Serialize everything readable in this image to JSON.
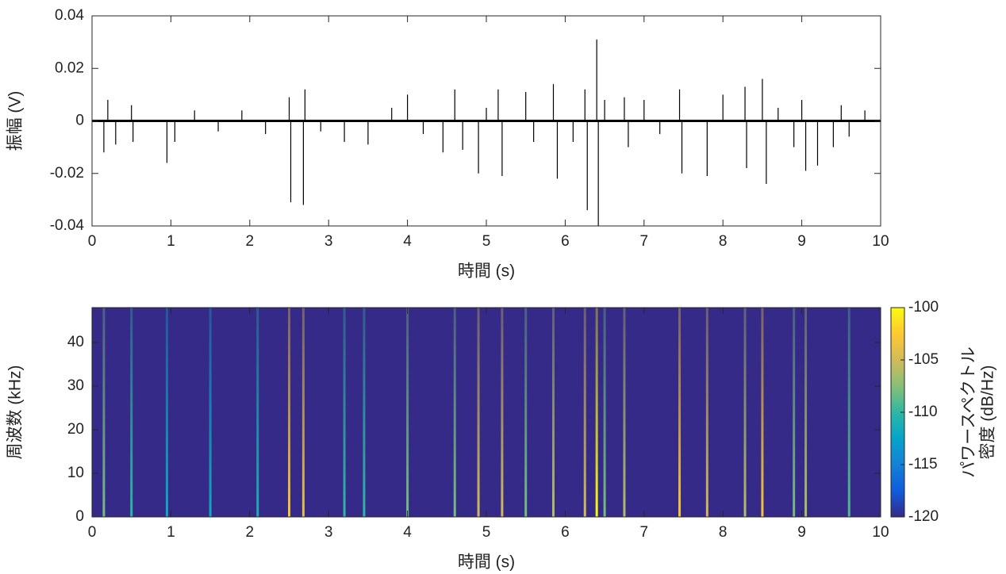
{
  "chart_data": [
    {
      "type": "stem",
      "xlabel": "時間 (s)",
      "ylabel": "振幅 (V)",
      "xlim": [
        0,
        10
      ],
      "xticks": [
        0,
        1,
        2,
        3,
        4,
        5,
        6,
        7,
        8,
        9,
        10
      ],
      "ylim": [
        -0.04,
        0.04
      ],
      "yticks": [
        -0.04,
        -0.02,
        0,
        0.02,
        0.04
      ],
      "color": "#000000",
      "x": [
        0.15,
        0.2,
        0.3,
        0.5,
        0.52,
        0.95,
        1.05,
        1.3,
        1.6,
        1.9,
        2.2,
        2.5,
        2.52,
        2.68,
        2.7,
        2.9,
        3.2,
        3.5,
        3.8,
        4.0,
        4.2,
        4.45,
        4.6,
        4.7,
        4.9,
        5.0,
        5.15,
        5.2,
        5.5,
        5.6,
        5.85,
        5.9,
        6.1,
        6.25,
        6.28,
        6.4,
        6.42,
        6.5,
        6.75,
        6.8,
        7.0,
        7.2,
        7.45,
        7.48,
        7.8,
        8.0,
        8.28,
        8.3,
        8.5,
        8.55,
        8.7,
        8.9,
        9.0,
        9.05,
        9.2,
        9.4,
        9.5,
        9.6,
        9.8
      ],
      "values": [
        -0.012,
        0.008,
        -0.009,
        0.006,
        -0.008,
        -0.016,
        -0.008,
        0.004,
        -0.004,
        0.004,
        -0.005,
        0.009,
        -0.031,
        -0.032,
        0.012,
        -0.004,
        -0.008,
        -0.009,
        0.005,
        0.01,
        -0.005,
        -0.012,
        0.012,
        -0.011,
        -0.02,
        0.005,
        0.012,
        -0.021,
        0.011,
        -0.008,
        0.014,
        -0.022,
        -0.008,
        0.012,
        -0.034,
        0.031,
        -0.04,
        0.008,
        0.009,
        -0.01,
        0.008,
        -0.005,
        0.012,
        -0.02,
        -0.021,
        0.01,
        0.013,
        -0.018,
        0.016,
        -0.024,
        0.005,
        -0.01,
        0.008,
        -0.019,
        -0.017,
        -0.01,
        0.006,
        -0.006,
        0.004
      ]
    },
    {
      "type": "spectrogram",
      "xlabel": "時間 (s)",
      "ylabel": "周波数 (kHz)",
      "xlim": [
        0,
        10
      ],
      "xticks": [
        0,
        1,
        2,
        3,
        4,
        5,
        6,
        7,
        8,
        9,
        10
      ],
      "ylim": [
        0,
        48
      ],
      "yticks": [
        0,
        10,
        20,
        30,
        40
      ],
      "clim": [
        -120,
        -100
      ],
      "cticks": [
        -100,
        -105,
        -110,
        -115,
        -120
      ],
      "clabel": [
        "パワースペクトル",
        "密度 (dB/Hz)"
      ],
      "colormap": [
        "#352a87",
        "#0f5cdd",
        "#1481d6",
        "#06a4ca",
        "#2eb7a4",
        "#87bf77",
        "#d1bb59",
        "#fec832",
        "#f9fb0e"
      ],
      "x": [
        0.15,
        0.5,
        0.95,
        1.5,
        2.1,
        2.5,
        2.68,
        3.2,
        3.45,
        4.0,
        4.6,
        4.9,
        5.2,
        5.5,
        5.85,
        6.25,
        6.4,
        6.5,
        6.75,
        7.45,
        7.8,
        8.28,
        8.5,
        8.9,
        9.05,
        9.6
      ],
      "values": [
        -108,
        -110,
        -112,
        -112,
        -111,
        -103,
        -104,
        -110,
        -110,
        -108,
        -108,
        -105,
        -105,
        -108,
        -106,
        -105,
        -100,
        -108,
        -106,
        -103,
        -105,
        -106,
        -103,
        -108,
        -106,
        -109
      ]
    }
  ]
}
